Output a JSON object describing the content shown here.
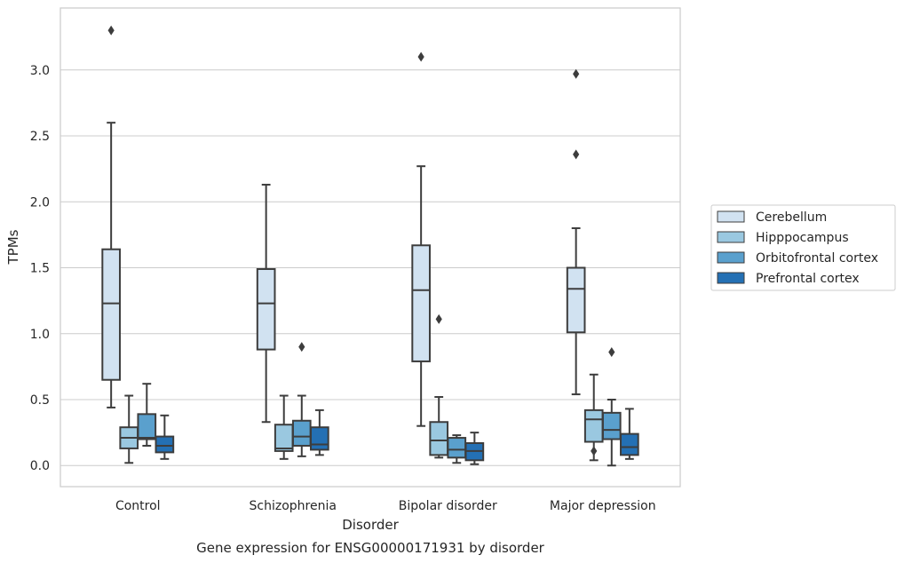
{
  "chart_data": {
    "type": "box",
    "caption": "Gene expression for ENSG00000171931 by disorder",
    "xlabel": "Disorder",
    "ylabel": "TPMs",
    "ylim": [
      -0.16,
      3.47
    ],
    "yticks": [
      0.0,
      0.5,
      1.0,
      1.5,
      2.0,
      2.5,
      3.0
    ],
    "ytick_labels": [
      "0.0",
      "0.5",
      "1.0",
      "1.5",
      "2.0",
      "2.5",
      "3.0"
    ],
    "grid": "horizontal",
    "legend_position": "right",
    "categories": [
      "Control",
      "Schizophrenia",
      "Bipolar disorder",
      "Major depression"
    ],
    "series": [
      {
        "name": "Cerebellum",
        "color": "#d1e2f1",
        "boxes": [
          {
            "whislo": 0.44,
            "q1": 0.65,
            "med": 1.23,
            "q3": 1.64,
            "whishi": 2.6,
            "fliers": [
              3.3
            ]
          },
          {
            "whislo": 0.33,
            "q1": 0.88,
            "med": 1.23,
            "q3": 1.49,
            "whishi": 2.13,
            "fliers": []
          },
          {
            "whislo": 0.3,
            "q1": 0.79,
            "med": 1.33,
            "q3": 1.67,
            "whishi": 2.27,
            "fliers": [
              3.1
            ]
          },
          {
            "whislo": 0.54,
            "q1": 1.01,
            "med": 1.34,
            "q3": 1.5,
            "whishi": 1.8,
            "fliers": [
              2.97,
              2.36
            ]
          }
        ]
      },
      {
        "name": "Hipppocampus",
        "color": "#9ac8e0",
        "boxes": [
          {
            "whislo": 0.02,
            "q1": 0.13,
            "med": 0.21,
            "q3": 0.29,
            "whishi": 0.53,
            "fliers": []
          },
          {
            "whislo": 0.05,
            "q1": 0.11,
            "med": 0.13,
            "q3": 0.31,
            "whishi": 0.53,
            "fliers": []
          },
          {
            "whislo": 0.06,
            "q1": 0.08,
            "med": 0.19,
            "q3": 0.33,
            "whishi": 0.52,
            "fliers": [
              1.11
            ]
          },
          {
            "whislo": 0.04,
            "q1": 0.18,
            "med": 0.35,
            "q3": 0.42,
            "whishi": 0.69,
            "fliers": [
              0.11
            ]
          }
        ]
      },
      {
        "name": "Orbitofrontal cortex",
        "color": "#5aa0cd",
        "boxes": [
          {
            "whislo": 0.15,
            "q1": 0.2,
            "med": 0.21,
            "q3": 0.39,
            "whishi": 0.62,
            "fliers": []
          },
          {
            "whislo": 0.07,
            "q1": 0.15,
            "med": 0.22,
            "q3": 0.34,
            "whishi": 0.53,
            "fliers": [
              0.9
            ]
          },
          {
            "whislo": 0.02,
            "q1": 0.06,
            "med": 0.12,
            "q3": 0.21,
            "whishi": 0.23,
            "fliers": []
          },
          {
            "whislo": 0.0,
            "q1": 0.2,
            "med": 0.27,
            "q3": 0.4,
            "whishi": 0.5,
            "fliers": [
              0.86
            ]
          }
        ]
      },
      {
        "name": "Prefrontal cortex",
        "color": "#2470b4",
        "boxes": [
          {
            "whislo": 0.05,
            "q1": 0.1,
            "med": 0.15,
            "q3": 0.22,
            "whishi": 0.38,
            "fliers": []
          },
          {
            "whislo": 0.08,
            "q1": 0.12,
            "med": 0.16,
            "q3": 0.29,
            "whishi": 0.42,
            "fliers": []
          },
          {
            "whislo": 0.01,
            "q1": 0.04,
            "med": 0.11,
            "q3": 0.17,
            "whishi": 0.25,
            "fliers": []
          },
          {
            "whislo": 0.05,
            "q1": 0.08,
            "med": 0.14,
            "q3": 0.24,
            "whishi": 0.43,
            "fliers": []
          }
        ]
      }
    ]
  }
}
